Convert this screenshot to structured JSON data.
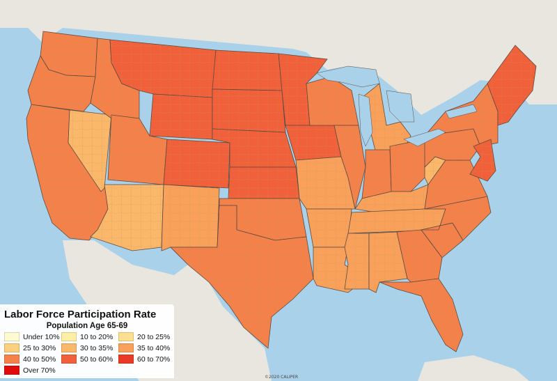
{
  "map": {
    "colors": {
      "water": "#a9d1ea",
      "land_outside": "#e8e6df",
      "state_border": "#5b4a3f",
      "county_border": "#c8955f"
    },
    "states": [
      {
        "name": "washington",
        "rate_class": 6
      },
      {
        "name": "oregon",
        "rate_class": 6
      },
      {
        "name": "california",
        "rate_class": 6
      },
      {
        "name": "nevada",
        "rate_class": 4
      },
      {
        "name": "idaho",
        "rate_class": 6
      },
      {
        "name": "montana",
        "rate_class": 7
      },
      {
        "name": "wyoming",
        "rate_class": 7
      },
      {
        "name": "utah",
        "rate_class": 6
      },
      {
        "name": "arizona",
        "rate_class": 4
      },
      {
        "name": "colorado",
        "rate_class": 7
      },
      {
        "name": "new-mexico",
        "rate_class": 5
      },
      {
        "name": "north-dakota",
        "rate_class": 7
      },
      {
        "name": "south-dakota",
        "rate_class": 7
      },
      {
        "name": "nebraska",
        "rate_class": 7
      },
      {
        "name": "kansas",
        "rate_class": 7
      },
      {
        "name": "oklahoma",
        "rate_class": 6
      },
      {
        "name": "texas",
        "rate_class": 6
      },
      {
        "name": "minnesota",
        "rate_class": 7
      },
      {
        "name": "iowa",
        "rate_class": 7
      },
      {
        "name": "missouri",
        "rate_class": 5
      },
      {
        "name": "arkansas",
        "rate_class": 5
      },
      {
        "name": "louisiana",
        "rate_class": 5
      },
      {
        "name": "wisconsin",
        "rate_class": 6
      },
      {
        "name": "illinois",
        "rate_class": 6
      },
      {
        "name": "michigan",
        "rate_class": 5
      },
      {
        "name": "indiana",
        "rate_class": 6
      },
      {
        "name": "ohio",
        "rate_class": 6
      },
      {
        "name": "kentucky",
        "rate_class": 5
      },
      {
        "name": "tennessee",
        "rate_class": 5
      },
      {
        "name": "mississippi",
        "rate_class": 5
      },
      {
        "name": "alabama",
        "rate_class": 5
      },
      {
        "name": "georgia",
        "rate_class": 6
      },
      {
        "name": "florida",
        "rate_class": 6
      },
      {
        "name": "south-carolina",
        "rate_class": 6
      },
      {
        "name": "north-carolina",
        "rate_class": 6
      },
      {
        "name": "virginia",
        "rate_class": 6
      },
      {
        "name": "west-virginia",
        "rate_class": 4
      },
      {
        "name": "pennsylvania",
        "rate_class": 6
      },
      {
        "name": "new-york",
        "rate_class": 6
      },
      {
        "name": "new-england",
        "rate_class": 7
      },
      {
        "name": "new-jersey-delaware-maryland",
        "rate_class": 7
      }
    ]
  },
  "legend": {
    "title": "Labor Force Participation Rate",
    "subtitle": "Population Age 65-69",
    "items": [
      {
        "label": "Under 10%",
        "color": "#fffbd0"
      },
      {
        "label": "10 to 20%",
        "color": "#ffefa6"
      },
      {
        "label": "20 to 25%",
        "color": "#fde08f"
      },
      {
        "label": "25 to 30%",
        "color": "#fcd07e"
      },
      {
        "label": "30 to 35%",
        "color": "#fbb86a"
      },
      {
        "label": "35 to 40%",
        "color": "#f9a15a"
      },
      {
        "label": "40 to 50%",
        "color": "#f4804a"
      },
      {
        "label": "50 to 60%",
        "color": "#f0603a"
      },
      {
        "label": "60 to 70%",
        "color": "#ea3a26"
      },
      {
        "label": "Over 70%",
        "color": "#e00c0c"
      }
    ]
  },
  "credit": "©2020 CALIPER"
}
